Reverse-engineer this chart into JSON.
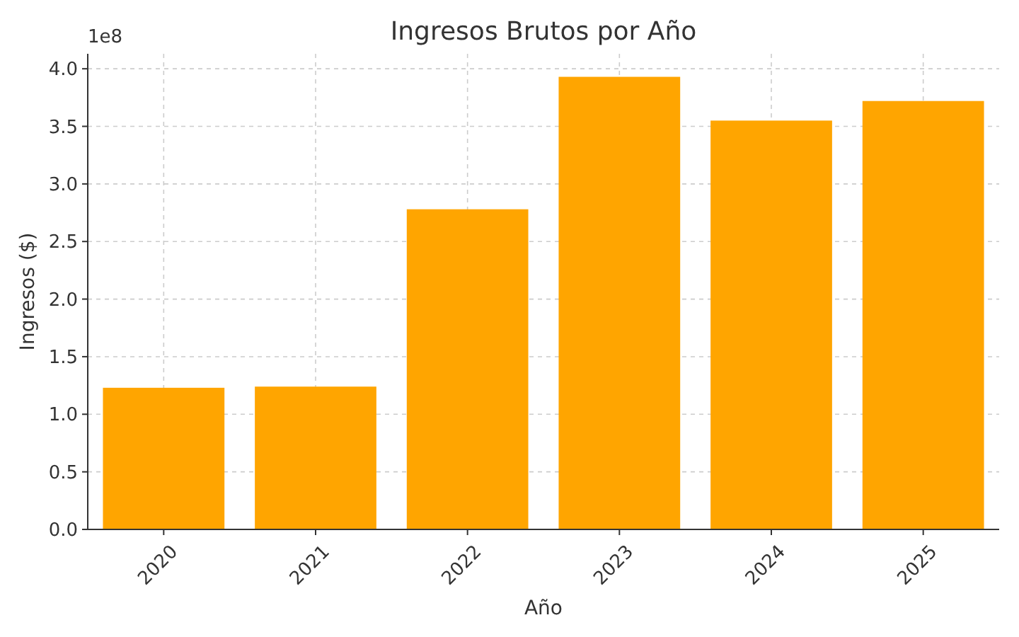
{
  "chart_data": {
    "type": "bar",
    "title": "Ingresos Brutos por Año",
    "xlabel": "Año",
    "ylabel": "Ingresos ($)",
    "categories": [
      "2020",
      "2021",
      "2022",
      "2023",
      "2024",
      "2025"
    ],
    "values": [
      1.23,
      1.24,
      2.78,
      3.93,
      3.55,
      3.72
    ],
    "color": "#ffa500",
    "ylim": [
      0,
      4.13
    ],
    "yticks": [
      {
        "value": 0,
        "label": "0.0"
      },
      0.5,
      {
        "value": 1,
        "label": "1.0"
      },
      1.5,
      {
        "value": 2,
        "label": "2.0"
      },
      2.5,
      {
        "value": 3,
        "label": "3.0"
      },
      3.5,
      {
        "value": 4,
        "label": "4.0"
      }
    ],
    "annotations": [
      "1e8"
    ],
    "grid": true
  }
}
